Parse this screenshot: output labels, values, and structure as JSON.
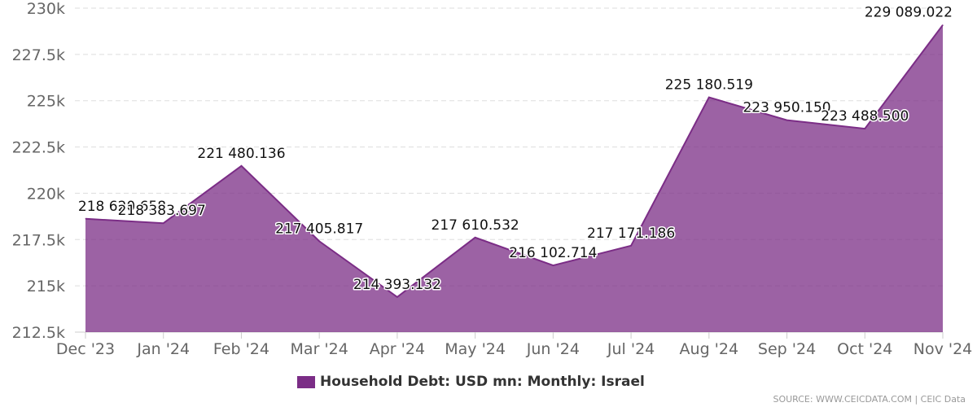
{
  "chart_data": {
    "type": "area",
    "categories": [
      "Dec '23",
      "Jan '24",
      "Feb '24",
      "Mar '24",
      "Apr '24",
      "May '24",
      "Jun '24",
      "Jul '24",
      "Aug '24",
      "Sep '24",
      "Oct '24",
      "Nov '24"
    ],
    "series": [
      {
        "name": "Household Debt: USD mn: Monthly: Israel",
        "values": [
          218620.658,
          218383.697,
          221480.136,
          217405.817,
          214393.132,
          217610.532,
          216102.714,
          217171.186,
          225180.519,
          223950.15,
          223488.5,
          229089.022
        ],
        "labels": [
          "218 620.658",
          "218 383.697",
          "221 480.136",
          "217 405.817",
          "214 393.132",
          "217 610.532",
          "216 102.714",
          "217 171.186",
          "225 180.519",
          "223 950.150",
          "223 488.500",
          "229 089.022"
        ],
        "color": "#7b2d86"
      }
    ],
    "ylim": [
      212500,
      230000
    ],
    "yticks": [
      212500,
      215000,
      217500,
      220000,
      222500,
      225000,
      227500,
      230000
    ],
    "ytick_labels": [
      "212.5k",
      "215k",
      "217.5k",
      "220k",
      "222.5k",
      "225k",
      "227.5k",
      "230k"
    ],
    "grid": true,
    "legend_position": "bottom-center"
  },
  "legend": {
    "label": "Household Debt: USD mn: Monthly: Israel",
    "color": "#7b2d86"
  },
  "source": {
    "text": "SOURCE: WWW.CEICDATA.COM | CEIC Data"
  }
}
